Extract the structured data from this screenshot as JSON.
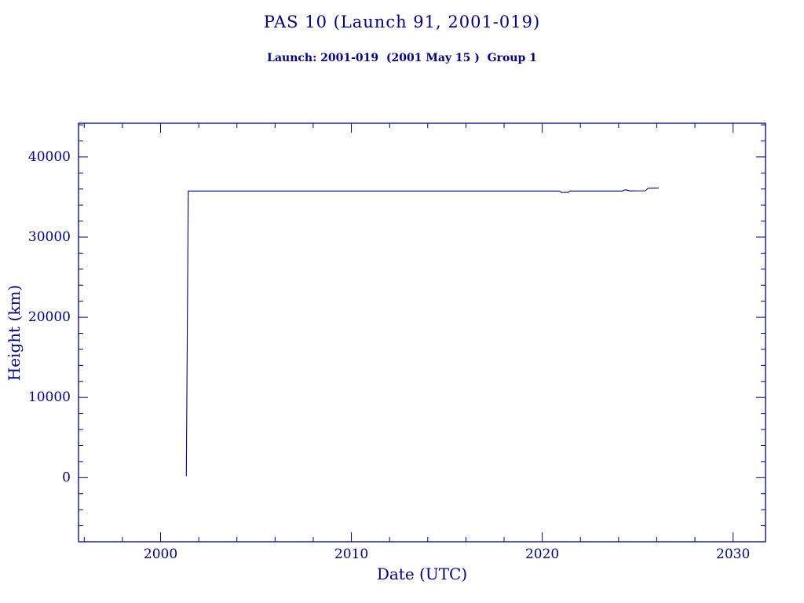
{
  "page": {
    "background": "#ffffff"
  },
  "colors": {
    "accent": "#000080",
    "line": "#000080"
  },
  "chart_data": {
    "type": "line",
    "title": "PAS 10 (Launch 91, 2001-019)",
    "subtitle": "Launch: 2001-019  (2001 May 15 )  Group 1",
    "xlabel": "Date (UTC)",
    "ylabel": "Height (km)",
    "xlim": [
      1995.7,
      2031.7
    ],
    "ylim": [
      -8000,
      44200
    ],
    "xticks": [
      2000,
      2010,
      2020,
      2030
    ],
    "yticks": [
      0,
      10000,
      20000,
      30000,
      40000
    ],
    "x_minor_step": 2,
    "y_minor_step": 2000,
    "grid": false,
    "legend": "none",
    "series": [
      {
        "name": "height-km",
        "color": "#000080",
        "points": [
          [
            2001.35,
            180
          ],
          [
            2001.45,
            35750
          ],
          [
            2020.9,
            35750
          ],
          [
            2021.0,
            35570
          ],
          [
            2021.35,
            35570
          ],
          [
            2021.45,
            35750
          ],
          [
            2024.2,
            35750
          ],
          [
            2024.35,
            35900
          ],
          [
            2024.6,
            35760
          ],
          [
            2025.4,
            35780
          ],
          [
            2025.55,
            36100
          ],
          [
            2026.1,
            36130
          ]
        ]
      }
    ]
  }
}
